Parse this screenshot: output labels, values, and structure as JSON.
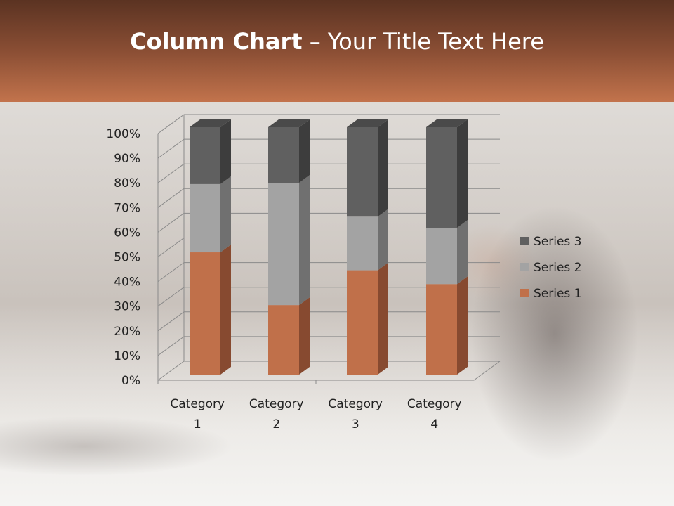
{
  "title": {
    "bold": "Column Chart",
    "rest": " – Your Title Text Here"
  },
  "chart_data": {
    "type": "bar",
    "stacking": "percent",
    "style": "3d-column",
    "title": "",
    "categories": [
      "Category 1",
      "Category 2",
      "Category 3",
      "Category 4"
    ],
    "category_lines": [
      [
        "Category",
        "1"
      ],
      [
        "Category",
        "2"
      ],
      [
        "Category",
        "3"
      ],
      [
        "Category",
        "4"
      ]
    ],
    "series": [
      {
        "name": "Series 1",
        "values": [
          4.3,
          2.5,
          3.5,
          4.5
        ],
        "color": "#c0704a",
        "side": "#874a30"
      },
      {
        "name": "Series 2",
        "values": [
          2.4,
          4.4,
          1.8,
          2.8
        ],
        "color": "#a3a3a3",
        "side": "#707070"
      },
      {
        "name": "Series 3",
        "values": [
          2,
          2,
          3,
          5
        ],
        "color": "#606060",
        "side": "#3d3d3d"
      }
    ],
    "yticks": [
      "0%",
      "10%",
      "20%",
      "30%",
      "40%",
      "50%",
      "60%",
      "70%",
      "80%",
      "90%",
      "100%"
    ],
    "ylim": [
      0,
      100
    ],
    "grid": true,
    "legend": "right"
  }
}
